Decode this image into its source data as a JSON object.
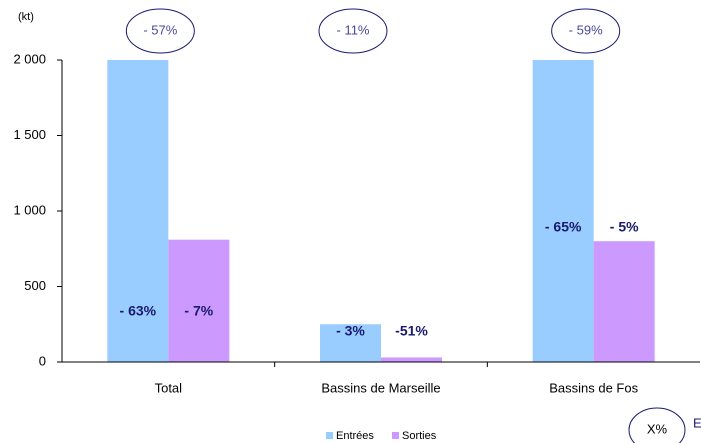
{
  "chart_data": {
    "type": "bar",
    "unit_label": "(kt)",
    "categories": [
      "Total",
      "Bassins de Marseille",
      "Bassins de Fos"
    ],
    "series": [
      {
        "name": "Entrées",
        "color": "#99ccff",
        "values": [
          2000,
          250,
          2000
        ],
        "annotations": [
          "- 63%",
          "- 3%",
          "- 65%"
        ]
      },
      {
        "name": "Sorties",
        "color": "#cc99ff",
        "values": [
          810,
          30,
          800
        ],
        "annotations": [
          "- 7%",
          "-51%",
          "- 5%"
        ]
      }
    ],
    "total_changes": [
      "- 57%",
      "- 11%",
      "- 59%"
    ],
    "ylim": [
      0,
      2000
    ],
    "yticks": [
      0,
      500,
      {
        "value": 1000,
        "label": "1 000"
      },
      {
        "value": 1500,
        "label": "1 500"
      },
      {
        "value": 2000,
        "label": "2 000"
      }
    ],
    "note_badge": "X%",
    "note_text": "E"
  }
}
